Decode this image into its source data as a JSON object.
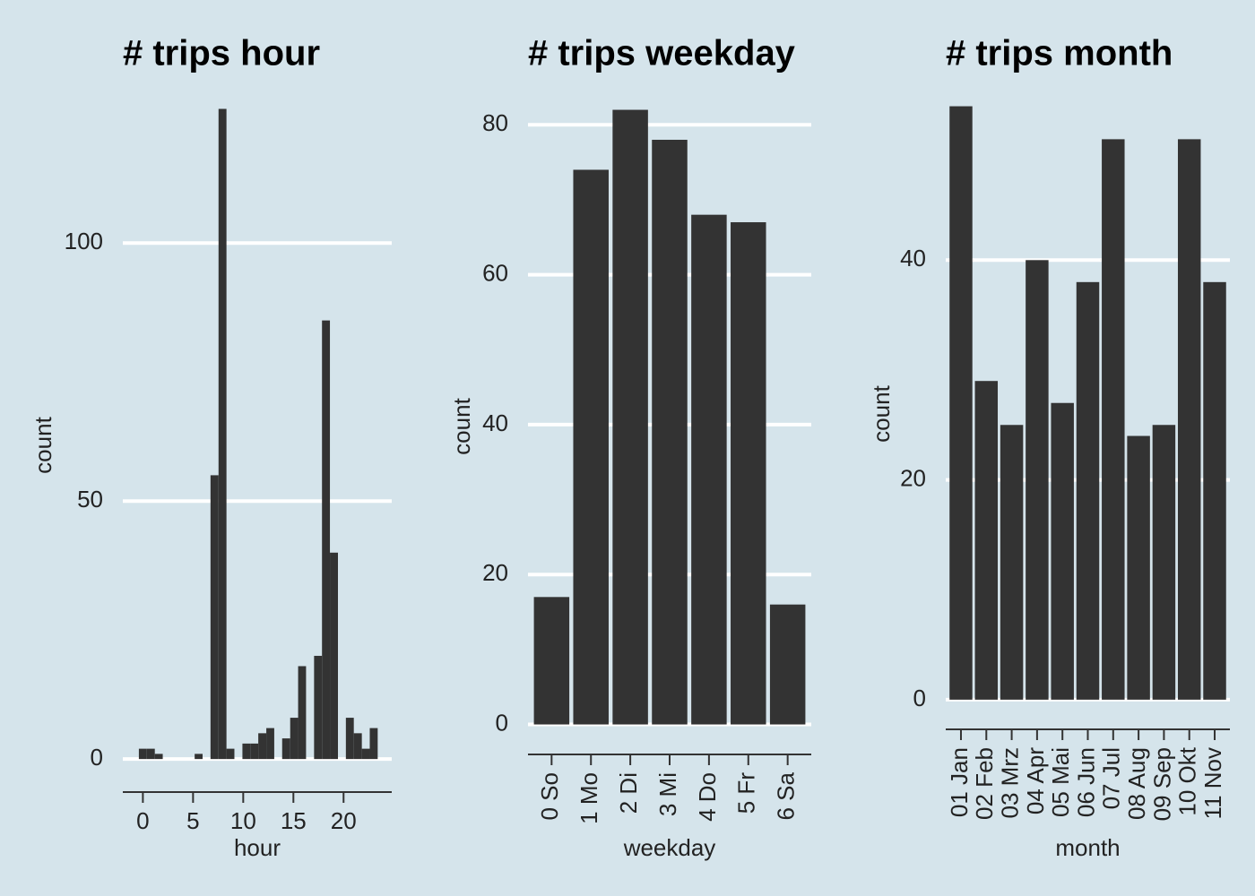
{
  "chart_data": [
    {
      "type": "histogram",
      "title": "# trips hour",
      "x_label": "hour",
      "y_label": "count",
      "bins": [
        -0.4,
        0.39,
        1.19,
        1.98,
        2.78,
        3.57,
        4.36,
        5.16,
        5.95,
        6.74,
        7.54,
        8.33,
        9.12,
        9.92,
        10.71,
        11.5,
        12.3,
        13.09,
        13.88,
        14.68,
        15.47,
        16.26,
        17.06,
        17.85,
        18.64,
        19.44,
        20.23,
        21.02,
        21.82,
        22.61,
        23.4
      ],
      "values": [
        2,
        2,
        1,
        0,
        0,
        0,
        0,
        1,
        0,
        55,
        126,
        2,
        0,
        3,
        3,
        5,
        6,
        0,
        4,
        8,
        18,
        0,
        20,
        85,
        40,
        0,
        8,
        5,
        2,
        6
      ],
      "color": "#333333",
      "xlim": [
        -2,
        24.8
      ],
      "xticks": [
        0,
        5,
        10,
        15,
        20
      ],
      "ylim": [
        -6.4,
        128
      ],
      "yticks": [
        0,
        50,
        100
      ],
      "grid": true
    },
    {
      "type": "bar",
      "title": "# trips weekday",
      "x_label": "weekday",
      "y_label": "count",
      "categories": [
        "0 So",
        "1 Mo",
        "2 Di",
        "3 Mi",
        "4 Do",
        "5 Fr",
        "6 Sa"
      ],
      "values": [
        17,
        74,
        82,
        78,
        68,
        67,
        16
      ],
      "color": "#333333",
      "ylim": [
        -4,
        83.5
      ],
      "yticks": [
        0,
        20,
        40,
        60,
        80
      ],
      "grid": true
    },
    {
      "type": "bar",
      "title": "# trips month",
      "x_label": "month",
      "y_label": "count",
      "categories": [
        "01 Jan",
        "02 Feb",
        "03 Mrz",
        "04 Apr",
        "05 Mai",
        "06 Jun",
        "07 Jul",
        "08 Aug",
        "09 Sep",
        "10 Okt",
        "11 Nov"
      ],
      "values": [
        54,
        29,
        25,
        40,
        27,
        38,
        51,
        24,
        25,
        51,
        38
      ],
      "color": "#333333",
      "ylim": [
        -2.7,
        54.7
      ],
      "yticks": [
        0,
        20,
        40
      ],
      "grid": true
    }
  ]
}
